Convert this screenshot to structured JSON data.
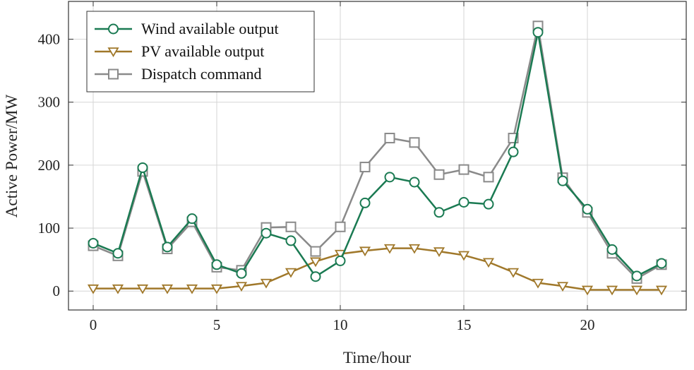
{
  "chart_data": {
    "type": "line",
    "xlabel": "Time/hour",
    "ylabel": "Active Power/MW",
    "xlim": [
      -1,
      24
    ],
    "ylim": [
      -30,
      460
    ],
    "xticks": [
      0,
      5,
      10,
      15,
      20
    ],
    "yticks": [
      0,
      100,
      200,
      300,
      400
    ],
    "grid": true,
    "legend_position": "top-left",
    "x": [
      0,
      1,
      2,
      3,
      4,
      5,
      6,
      7,
      8,
      9,
      10,
      11,
      12,
      13,
      14,
      15,
      16,
      17,
      18,
      19,
      20,
      21,
      22,
      23
    ],
    "series": [
      {
        "name": "Wind available output",
        "color": "#1a7a52",
        "marker": "circle",
        "values": [
          76,
          60,
          196,
          70,
          115,
          42,
          28,
          92,
          80,
          23,
          48,
          140,
          181,
          173,
          125,
          141,
          138,
          221,
          411,
          175,
          130,
          66,
          24,
          44
        ]
      },
      {
        "name": "PV available output",
        "color": "#a0782a",
        "marker": "triangle-down",
        "values": [
          4,
          4,
          4,
          4,
          4,
          4,
          8,
          13,
          30,
          47,
          59,
          64,
          68,
          68,
          63,
          57,
          46,
          30,
          13,
          8,
          2,
          2,
          2,
          2
        ]
      },
      {
        "name": "Dispatch command",
        "color": "#8a8a8a",
        "marker": "square",
        "values": [
          72,
          56,
          190,
          67,
          110,
          38,
          33,
          101,
          102,
          63,
          102,
          197,
          243,
          236,
          185,
          193,
          181,
          243,
          421,
          180,
          125,
          60,
          20,
          42
        ]
      }
    ]
  }
}
